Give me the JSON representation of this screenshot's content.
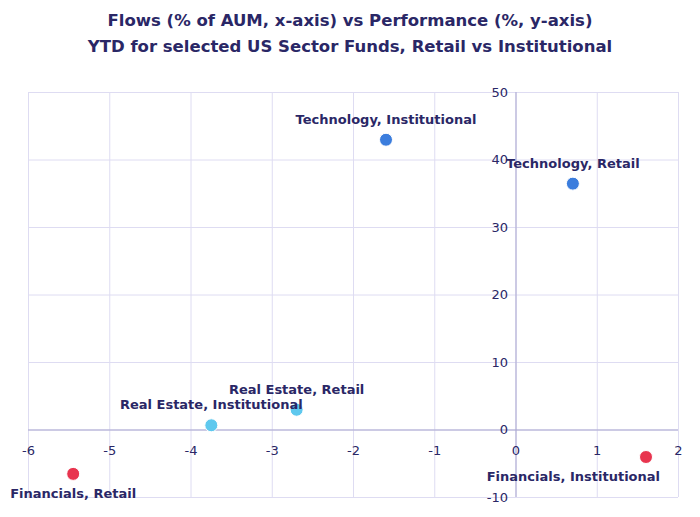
{
  "chart_data": {
    "type": "scatter",
    "title": "Flows (% of AUM, x-axis) vs Performance (%, y-axis)",
    "subtitle": "YTD for selected US Sector Funds, Retail vs Institutional",
    "categories": [
      "Technology, Institutional",
      "Technology, Retail",
      "Real Estate, Institutional",
      "Real Estate, Retail",
      "Financials, Retail",
      "Financials, Institutional"
    ],
    "x": [
      -1.6,
      0.7,
      -3.75,
      -2.7,
      -5.45,
      1.6
    ],
    "values": [
      43,
      36.5,
      0.7,
      3,
      -6.5,
      -4
    ],
    "colors": [
      "#3b7ddd",
      "#3b7ddd",
      "#5ec8ee",
      "#5ec8ee",
      "#e8344e",
      "#e8344e"
    ],
    "xlim": [
      -6,
      2
    ],
    "xticks": [
      -6,
      -5,
      -4,
      -3,
      -2,
      -1,
      0,
      1,
      2
    ],
    "ylim": [
      -10,
      50
    ],
    "yticks": [
      -10,
      0,
      10,
      20,
      30,
      40,
      50
    ],
    "grid": true
  }
}
